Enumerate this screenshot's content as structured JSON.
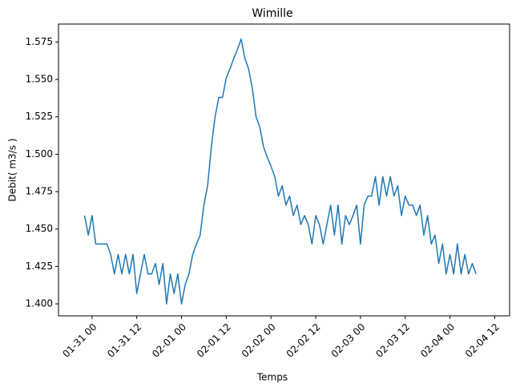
{
  "chart_data": {
    "type": "line",
    "title": "Wimille",
    "x_label": "Temps",
    "y_label": "Debit( m3/s )",
    "x": [
      "01-30 22",
      "01-30 23",
      "01-31 00",
      "01-31 01",
      "01-31 02",
      "01-31 03",
      "01-31 04",
      "01-31 05",
      "01-31 06",
      "01-31 07",
      "01-31 08",
      "01-31 09",
      "01-31 10",
      "01-31 11",
      "01-31 12",
      "01-31 13",
      "01-31 14",
      "01-31 15",
      "01-31 16",
      "01-31 17",
      "01-31 18",
      "01-31 19",
      "01-31 20",
      "01-31 21",
      "01-31 22",
      "01-31 23",
      "02-01 00",
      "02-01 01",
      "02-01 02",
      "02-01 03",
      "02-01 04",
      "02-01 05",
      "02-01 06",
      "02-01 07",
      "02-01 08",
      "02-01 09",
      "02-01 10",
      "02-01 11",
      "02-01 12",
      "02-01 13",
      "02-01 14",
      "02-01 15",
      "02-01 16",
      "02-01 17",
      "02-01 18",
      "02-01 19",
      "02-01 20",
      "02-01 21",
      "02-01 22",
      "02-01 23",
      "02-02 00",
      "02-02 01",
      "02-02 02",
      "02-02 03",
      "02-02 04",
      "02-02 05",
      "02-02 06",
      "02-02 07",
      "02-02 08",
      "02-02 09",
      "02-02 10",
      "02-02 11",
      "02-02 12",
      "02-02 13",
      "02-02 14",
      "02-02 15",
      "02-02 16",
      "02-02 17",
      "02-02 18",
      "02-02 19",
      "02-02 20",
      "02-02 21",
      "02-02 22",
      "02-02 23",
      "02-03 00",
      "02-03 01",
      "02-03 02",
      "02-03 03",
      "02-03 04",
      "02-03 05",
      "02-03 06",
      "02-03 07",
      "02-03 08",
      "02-03 09",
      "02-03 10",
      "02-03 11",
      "02-03 12",
      "02-03 13",
      "02-03 14",
      "02-03 15",
      "02-03 16",
      "02-03 17",
      "02-03 18",
      "02-03 19",
      "02-03 20",
      "02-03 21",
      "02-03 22",
      "02-03 23",
      "02-04 00",
      "02-04 01",
      "02-04 02",
      "02-04 03",
      "02-04 04",
      "02-04 05",
      "02-04 06",
      "02-04 07"
    ],
    "series": [
      {
        "color": "#1f77b4",
        "values": [
          1.459,
          1.446,
          1.459,
          1.44,
          1.44,
          1.44,
          1.44,
          1.433,
          1.42,
          1.433,
          1.42,
          1.433,
          1.42,
          1.433,
          1.407,
          1.42,
          1.433,
          1.42,
          1.42,
          1.427,
          1.413,
          1.427,
          1.4,
          1.42,
          1.407,
          1.42,
          1.4,
          1.413,
          1.42,
          1.433,
          1.44,
          1.446,
          1.466,
          1.479,
          1.505,
          1.525,
          1.538,
          1.538,
          1.551,
          1.557,
          1.564,
          1.57,
          1.577,
          1.564,
          1.557,
          1.544,
          1.525,
          1.518,
          1.505,
          1.498,
          1.492,
          1.485,
          1.472,
          1.479,
          1.466,
          1.472,
          1.459,
          1.466,
          1.453,
          1.459,
          1.453,
          1.44,
          1.459,
          1.453,
          1.44,
          1.453,
          1.466,
          1.446,
          1.466,
          1.44,
          1.459,
          1.453,
          1.459,
          1.466,
          1.44,
          1.466,
          1.472,
          1.472,
          1.485,
          1.466,
          1.485,
          1.472,
          1.485,
          1.472,
          1.479,
          1.459,
          1.472,
          1.466,
          1.466,
          1.459,
          1.466,
          1.446,
          1.459,
          1.44,
          1.446,
          1.427,
          1.44,
          1.42,
          1.433,
          1.42,
          1.44,
          1.42,
          1.433,
          1.42,
          1.427,
          1.42
        ]
      }
    ],
    "xlim": [
      "01-30 15",
      "02-04 16"
    ],
    "xticks": [
      "01-31 00",
      "01-31 12",
      "02-01 00",
      "02-01 12",
      "02-02 00",
      "02-02 12",
      "02-03 00",
      "02-03 12",
      "02-04 00",
      "02-04 12"
    ],
    "ylim": [
      1.392,
      1.587
    ],
    "yticks": [
      {
        "value": 1.4,
        "label": "1.400"
      },
      1.425,
      {
        "value": 1.45,
        "label": "1.450"
      },
      1.475,
      {
        "value": 1.5,
        "label": "1.500"
      },
      1.525,
      {
        "value": 1.55,
        "label": "1.550"
      },
      1.575
    ]
  }
}
